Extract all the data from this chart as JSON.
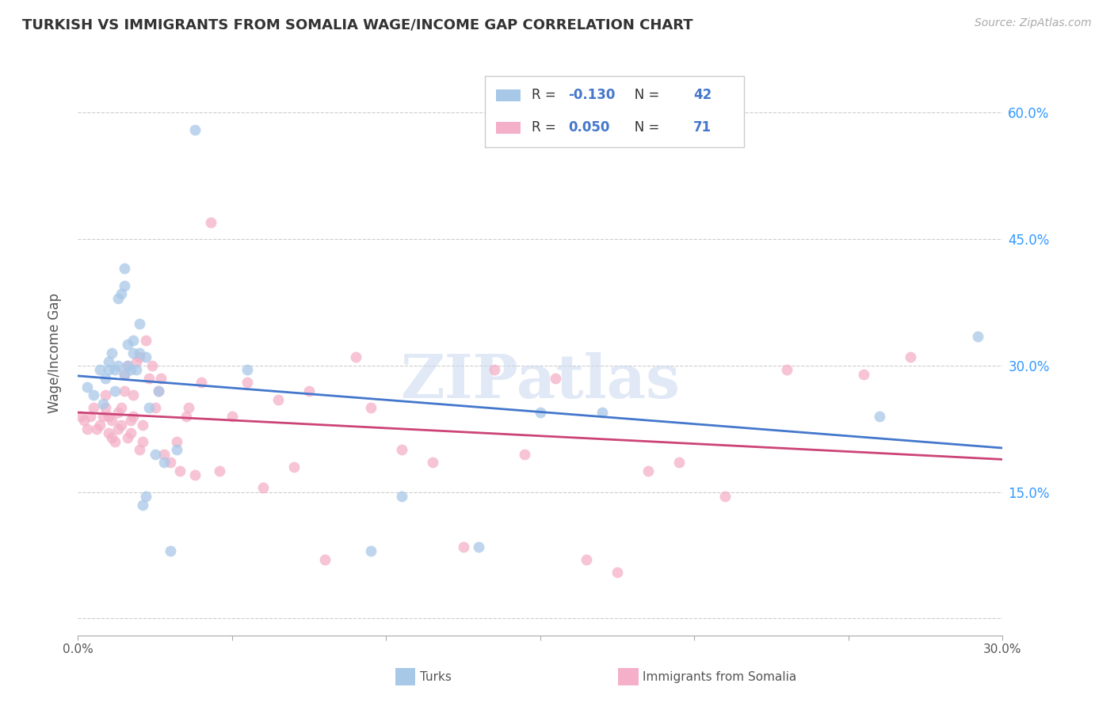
{
  "title": "TURKISH VS IMMIGRANTS FROM SOMALIA WAGE/INCOME GAP CORRELATION CHART",
  "source": "Source: ZipAtlas.com",
  "ylabel": "Wage/Income Gap",
  "xlim": [
    0.0,
    0.3
  ],
  "ylim": [
    -0.02,
    0.65
  ],
  "yticks": [
    0.0,
    0.15,
    0.3,
    0.45,
    0.6
  ],
  "ytick_labels": [
    "",
    "15.0%",
    "30.0%",
    "45.0%",
    "60.0%"
  ],
  "xticks": [
    0.0,
    0.05,
    0.1,
    0.15,
    0.2,
    0.25,
    0.3
  ],
  "xtick_labels": [
    "0.0%",
    "",
    "",
    "",
    "",
    "",
    "30.0%"
  ],
  "blue_R": -0.13,
  "blue_N": 42,
  "pink_R": 0.05,
  "pink_N": 71,
  "blue_color": "#a8c8e8",
  "pink_color": "#f4b0c8",
  "blue_line_color": "#4477cc",
  "pink_line_color": "#cc4477",
  "watermark": "ZIPatlas",
  "blue_points_x": [
    0.003,
    0.005,
    0.007,
    0.008,
    0.009,
    0.01,
    0.01,
    0.011,
    0.012,
    0.012,
    0.013,
    0.013,
    0.014,
    0.015,
    0.015,
    0.015,
    0.016,
    0.016,
    0.017,
    0.018,
    0.018,
    0.019,
    0.02,
    0.02,
    0.021,
    0.022,
    0.022,
    0.023,
    0.025,
    0.026,
    0.028,
    0.03,
    0.032,
    0.038,
    0.055,
    0.095,
    0.105,
    0.13,
    0.15,
    0.17,
    0.26,
    0.292
  ],
  "blue_points_y": [
    0.275,
    0.265,
    0.295,
    0.255,
    0.285,
    0.295,
    0.305,
    0.315,
    0.295,
    0.27,
    0.38,
    0.3,
    0.385,
    0.395,
    0.415,
    0.29,
    0.3,
    0.325,
    0.295,
    0.315,
    0.33,
    0.295,
    0.315,
    0.35,
    0.135,
    0.145,
    0.31,
    0.25,
    0.195,
    0.27,
    0.185,
    0.08,
    0.2,
    0.58,
    0.295,
    0.08,
    0.145,
    0.085,
    0.245,
    0.245,
    0.24,
    0.335
  ],
  "pink_points_x": [
    0.001,
    0.002,
    0.003,
    0.004,
    0.005,
    0.006,
    0.007,
    0.008,
    0.009,
    0.009,
    0.01,
    0.01,
    0.011,
    0.011,
    0.012,
    0.013,
    0.013,
    0.014,
    0.014,
    0.015,
    0.015,
    0.016,
    0.016,
    0.017,
    0.017,
    0.018,
    0.018,
    0.019,
    0.02,
    0.02,
    0.021,
    0.021,
    0.022,
    0.023,
    0.024,
    0.025,
    0.026,
    0.027,
    0.028,
    0.03,
    0.032,
    0.033,
    0.035,
    0.036,
    0.038,
    0.04,
    0.043,
    0.046,
    0.05,
    0.055,
    0.06,
    0.065,
    0.07,
    0.075,
    0.08,
    0.09,
    0.095,
    0.105,
    0.115,
    0.125,
    0.135,
    0.145,
    0.155,
    0.165,
    0.175,
    0.185,
    0.195,
    0.21,
    0.23,
    0.255,
    0.27
  ],
  "pink_points_y": [
    0.24,
    0.235,
    0.225,
    0.24,
    0.25,
    0.225,
    0.23,
    0.24,
    0.25,
    0.265,
    0.22,
    0.24,
    0.235,
    0.215,
    0.21,
    0.225,
    0.245,
    0.25,
    0.23,
    0.27,
    0.29,
    0.3,
    0.215,
    0.235,
    0.22,
    0.24,
    0.265,
    0.305,
    0.31,
    0.2,
    0.21,
    0.23,
    0.33,
    0.285,
    0.3,
    0.25,
    0.27,
    0.285,
    0.195,
    0.185,
    0.21,
    0.175,
    0.24,
    0.25,
    0.17,
    0.28,
    0.47,
    0.175,
    0.24,
    0.28,
    0.155,
    0.26,
    0.18,
    0.27,
    0.07,
    0.31,
    0.25,
    0.2,
    0.185,
    0.085,
    0.295,
    0.195,
    0.285,
    0.07,
    0.055,
    0.175,
    0.185,
    0.145,
    0.295,
    0.29,
    0.31
  ],
  "right_axis_color": "#3399ff",
  "grid_color": "#cccccc",
  "legend_edge_color": "#cccccc",
  "legend_face_color": "#ffffff"
}
